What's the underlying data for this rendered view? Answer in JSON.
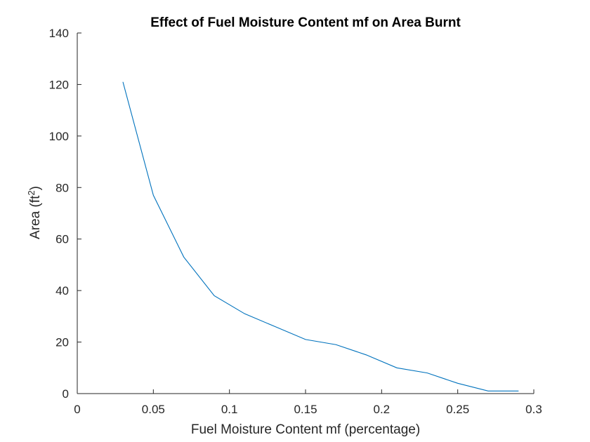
{
  "chart_data": {
    "type": "line",
    "title": "Effect of Fuel Moisture Content mf on Area Burnt",
    "xlabel": "Fuel Moisture Content mf (percentage)",
    "ylabel_main": "Area (ft",
    "ylabel_sup": "2",
    "ylabel_end": ")",
    "xlim": [
      0,
      0.3
    ],
    "ylim": [
      0,
      140
    ],
    "xticks": [
      0,
      0.05,
      0.1,
      0.15,
      0.2,
      0.25,
      0.3
    ],
    "xtick_labels": [
      "0",
      "0.05",
      "0.1",
      "0.15",
      "0.2",
      "0.25",
      "0.3"
    ],
    "yticks": [
      0,
      20,
      40,
      60,
      80,
      100,
      120,
      140
    ],
    "ytick_labels": [
      "0",
      "20",
      "40",
      "60",
      "80",
      "100",
      "120",
      "140"
    ],
    "grid": false,
    "series": [
      {
        "color": "#0072BD",
        "x": [
          0.03,
          0.05,
          0.07,
          0.09,
          0.11,
          0.13,
          0.15,
          0.17,
          0.19,
          0.21,
          0.23,
          0.25,
          0.27,
          0.29
        ],
        "y": [
          121,
          77,
          53,
          38,
          31,
          26,
          21,
          19,
          15,
          10,
          8,
          4,
          1,
          1
        ]
      }
    ]
  }
}
